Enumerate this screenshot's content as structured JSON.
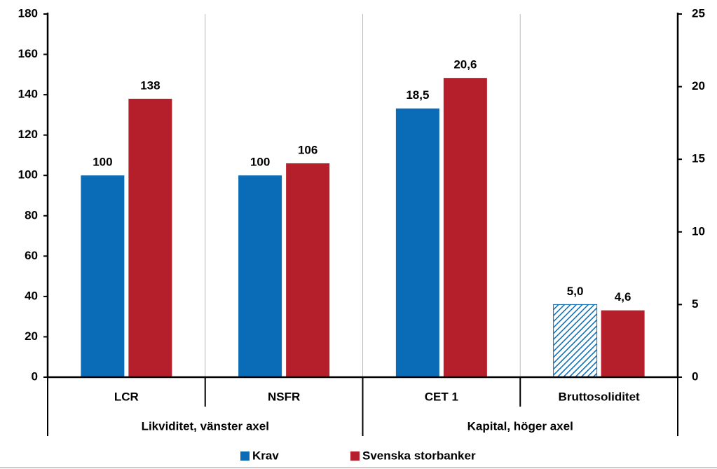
{
  "chart_data": {
    "type": "bar",
    "categories": [
      "LCR",
      "NSFR",
      "CET 1",
      "Bruttosoliditet"
    ],
    "group_labels": [
      "Likviditet, vänster axel",
      "Kapital, höger axel"
    ],
    "bar_axes": [
      "y",
      "y",
      "y2",
      "y2"
    ],
    "series": [
      {
        "name": "Krav",
        "color": "#0a6cb6",
        "values": [
          100,
          100,
          18.5,
          5.0
        ],
        "value_labels": [
          "100",
          "100",
          "18,5",
          "5,0"
        ],
        "hatched": [
          false,
          false,
          false,
          true
        ]
      },
      {
        "name": "Svenska storbanker",
        "color": "#b51e2b",
        "values": [
          138,
          106,
          20.6,
          4.6
        ],
        "value_labels": [
          "138",
          "106",
          "20,6",
          "4,6"
        ],
        "hatched": [
          false,
          false,
          false,
          false
        ]
      }
    ],
    "ylim": [
      0,
      180
    ],
    "yticks": [
      0,
      20,
      40,
      60,
      80,
      100,
      120,
      140,
      160,
      180
    ],
    "y2lim": [
      0,
      25
    ],
    "y2ticks": [
      0,
      5,
      10,
      15,
      20,
      25
    ],
    "category_grid": true
  }
}
